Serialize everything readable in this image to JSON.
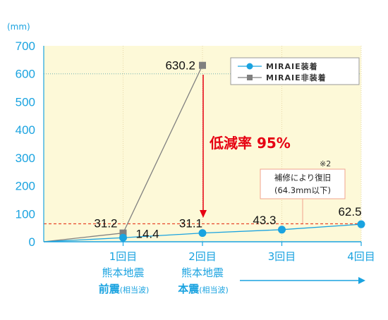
{
  "chart_data": {
    "type": "line",
    "unit_label": "(mm)",
    "ylim": [
      0,
      700
    ],
    "y_ticks": [
      "0",
      "100",
      "200",
      "300",
      "400",
      "500",
      "600",
      "700"
    ],
    "categories": [
      "1回目",
      "2回目",
      "3回目",
      "4回目"
    ],
    "category_sublabels": [
      {
        "line1": "熊本地震",
        "line2_main": "前震",
        "line2_note": "(相当波)"
      },
      {
        "line1": "熊本地震",
        "line2_main": "本震",
        "line2_note": "(相当波)"
      },
      {
        "line1": "",
        "line2_main": "",
        "line2_note": ""
      },
      {
        "line1": "",
        "line2_main": "",
        "line2_note": ""
      }
    ],
    "series": [
      {
        "name": "MIRAIE装着",
        "color": "#1aa3e0",
        "marker": "circle",
        "x": [
          0,
          1,
          2,
          3,
          4
        ],
        "values": [
          0,
          14.4,
          31.1,
          43.3,
          62.5
        ],
        "labels": [
          "",
          "14.4",
          "31.1",
          "43.3",
          "62.5"
        ]
      },
      {
        "name": "MIRAIE非装着",
        "color": "#808080",
        "marker": "square",
        "x": [
          0,
          1,
          2
        ],
        "values": [
          0,
          31.2,
          630.2
        ],
        "labels": [
          "",
          "31.2",
          "630.2"
        ]
      }
    ],
    "reference_line_600": 600,
    "repair_threshold": 64.3,
    "reduction_label": "低減率 95%",
    "note_mark": "※2",
    "note_lines": [
      "補修により復旧",
      "(64.3mm以下)"
    ],
    "colors": {
      "plot_bg": "#fdf9d8",
      "axis": "#1aa3e0",
      "threshold": "#e8472a",
      "reduction": "#e60012"
    }
  }
}
